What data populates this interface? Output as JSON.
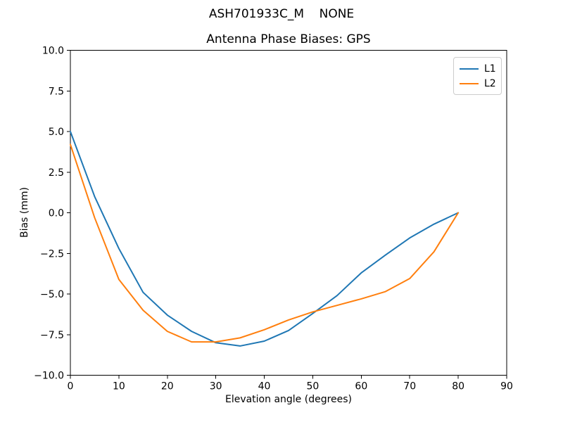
{
  "chart_data": {
    "type": "line",
    "suptitle": "ASH701933C_M    NONE",
    "title": "Antenna Phase Biases: GPS",
    "xlabel": "Elevation angle (degrees)",
    "ylabel": "Bias (mm)",
    "xlim": [
      0,
      90
    ],
    "ylim": [
      -10,
      10
    ],
    "grid": false,
    "legend_position": "upper right",
    "background_color": "#ffffff",
    "axis_color": "#000000",
    "x_ticks": [
      0,
      10,
      20,
      30,
      40,
      50,
      60,
      70,
      80,
      90
    ],
    "y_ticks": [
      {
        "value": 10.0,
        "label": "10.0"
      },
      {
        "value": 7.5,
        "label": "7.5"
      },
      {
        "value": 5.0,
        "label": "5.0"
      },
      {
        "value": 2.5,
        "label": "2.5"
      },
      {
        "value": 0.0,
        "label": "0.0"
      },
      {
        "value": -2.5,
        "label": "−2.5"
      },
      {
        "value": -5.0,
        "label": "−5.0"
      },
      {
        "value": -7.5,
        "label": "−7.5"
      },
      {
        "value": -10.0,
        "label": "−10.0"
      }
    ],
    "x": [
      0,
      5,
      10,
      15,
      20,
      25,
      30,
      35,
      40,
      45,
      50,
      55,
      60,
      65,
      70,
      75,
      80
    ],
    "series": [
      {
        "name": "L1",
        "color": "#1f77b4",
        "values": [
          5.0,
          1.0,
          -2.2,
          -4.9,
          -6.3,
          -7.3,
          -8.0,
          -8.2,
          -7.9,
          -7.25,
          -6.2,
          -5.1,
          -3.7,
          -2.6,
          -1.55,
          -0.7,
          0.0
        ]
      },
      {
        "name": "L2",
        "color": "#ff7f0e",
        "values": [
          4.2,
          -0.3,
          -4.1,
          -6.0,
          -7.3,
          -7.95,
          -7.95,
          -7.7,
          -7.2,
          -6.6,
          -6.1,
          -5.7,
          -5.3,
          -4.85,
          -4.05,
          -2.4,
          0.0
        ]
      }
    ]
  }
}
